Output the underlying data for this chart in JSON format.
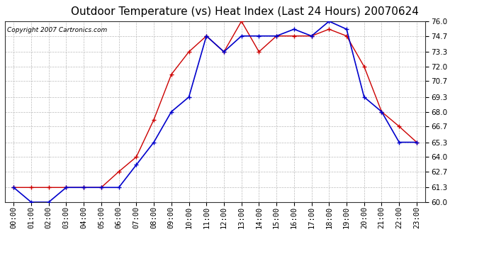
{
  "title": "Outdoor Temperature (vs) Heat Index (Last 24 Hours) 20070624",
  "copyright": "Copyright 2007 Cartronics.com",
  "x_labels": [
    "00:00",
    "01:00",
    "02:00",
    "03:00",
    "04:00",
    "05:00",
    "06:00",
    "07:00",
    "08:00",
    "09:00",
    "10:00",
    "11:00",
    "12:00",
    "13:00",
    "14:00",
    "15:00",
    "16:00",
    "17:00",
    "18:00",
    "19:00",
    "20:00",
    "21:00",
    "22:00",
    "23:00"
  ],
  "red_data": [
    61.3,
    61.3,
    61.3,
    61.3,
    61.3,
    61.3,
    62.7,
    64.0,
    67.3,
    71.3,
    73.3,
    74.7,
    73.3,
    76.0,
    73.3,
    74.7,
    74.7,
    74.7,
    75.3,
    74.7,
    72.0,
    68.0,
    66.7,
    65.3
  ],
  "blue_data": [
    61.3,
    60.0,
    60.0,
    61.3,
    61.3,
    61.3,
    61.3,
    63.3,
    65.3,
    68.0,
    69.3,
    74.7,
    73.3,
    74.7,
    74.7,
    74.7,
    75.3,
    74.7,
    76.0,
    75.3,
    69.3,
    68.0,
    65.3,
    65.3
  ],
  "red_color": "#cc0000",
  "blue_color": "#0000cc",
  "bg_color": "#ffffff",
  "grid_color": "#bbbbbb",
  "plot_bg_color": "#ffffff",
  "ylim_min": 60.0,
  "ylim_max": 76.0,
  "yticks": [
    60.0,
    61.3,
    62.7,
    64.0,
    65.3,
    66.7,
    68.0,
    69.3,
    70.7,
    72.0,
    73.3,
    74.7,
    76.0
  ],
  "title_fontsize": 11,
  "copyright_fontsize": 6.5,
  "tick_fontsize": 7.5
}
